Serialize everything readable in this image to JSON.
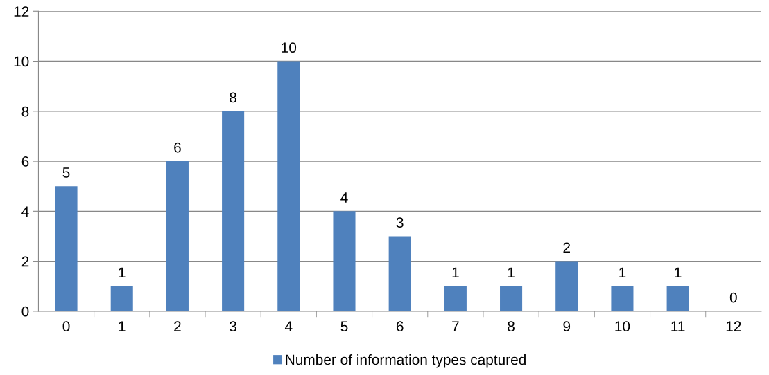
{
  "chart_data": {
    "type": "bar",
    "categories": [
      "0",
      "1",
      "2",
      "3",
      "4",
      "5",
      "6",
      "7",
      "8",
      "9",
      "10",
      "11",
      "12"
    ],
    "series": [
      {
        "name": "Number of information types captured",
        "color": "#4f81bd",
        "values": [
          5,
          1,
          6,
          8,
          10,
          4,
          3,
          1,
          1,
          2,
          1,
          1,
          0
        ]
      }
    ],
    "ylim": [
      0,
      12
    ],
    "yticks": [
      0,
      2,
      4,
      6,
      8,
      10,
      12
    ],
    "grid": "y",
    "legend": "bottom",
    "data_labels": true
  }
}
